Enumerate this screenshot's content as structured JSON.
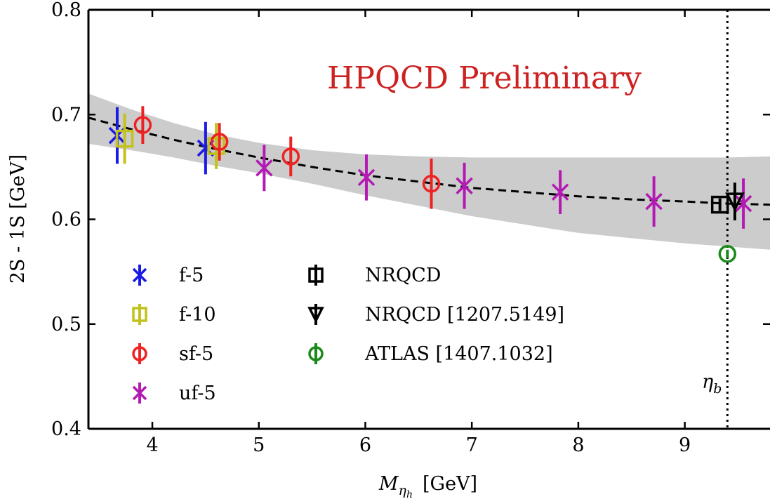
{
  "chart_data": {
    "type": "scatter",
    "title": "",
    "xlabel_main": "M",
    "xlabel_sub": "η",
    "xlabel_subsub": "h",
    "xlabel_unit": "[GeV]",
    "ylabel": "2S - 1S [GeV]",
    "xlim": [
      3.4,
      9.8
    ],
    "ylim": [
      0.4,
      0.8
    ],
    "xticks": [
      4,
      5,
      6,
      7,
      8,
      9
    ],
    "yticks": [
      0.4,
      0.5,
      0.6,
      0.7,
      0.8
    ],
    "xtick_labels": [
      "4",
      "5",
      "6",
      "7",
      "8",
      "9"
    ],
    "ytick_labels": [
      "0.4",
      "0.5",
      "0.6",
      "0.7",
      "0.8"
    ],
    "annotation": {
      "text": "HPQCD Preliminary",
      "color": "#cc2222"
    },
    "vertical_line": {
      "x": 9.4,
      "label": "η",
      "label_sub": "b"
    },
    "fit": {
      "x": [
        3.4,
        3.8,
        4.2,
        4.6,
        5.0,
        5.5,
        6.0,
        6.5,
        7.0,
        7.5,
        8.0,
        8.5,
        9.0,
        9.4,
        9.8
      ],
      "central": [
        0.697,
        0.686,
        0.676,
        0.667,
        0.659,
        0.65,
        0.642,
        0.636,
        0.63,
        0.626,
        0.622,
        0.619,
        0.617,
        0.615,
        0.614
      ],
      "upper": [
        0.72,
        0.705,
        0.692,
        0.681,
        0.673,
        0.666,
        0.662,
        0.66,
        0.659,
        0.659,
        0.659,
        0.659,
        0.659,
        0.659,
        0.66
      ],
      "lower": [
        0.672,
        0.666,
        0.659,
        0.651,
        0.644,
        0.634,
        0.623,
        0.613,
        0.603,
        0.595,
        0.587,
        0.582,
        0.577,
        0.574,
        0.571
      ],
      "band_color": "#cccccc"
    },
    "series": [
      {
        "name": "f-5",
        "marker": "asterisk",
        "color": "#1a1ae6",
        "points": [
          {
            "x": 3.67,
            "y": 0.68,
            "err": 0.027
          },
          {
            "x": 4.5,
            "y": 0.668,
            "err": 0.025
          }
        ]
      },
      {
        "name": "f-10",
        "marker": "square",
        "color": "#c2c21a",
        "points": [
          {
            "x": 3.74,
            "y": 0.677,
            "err": 0.024
          },
          {
            "x": 4.6,
            "y": 0.67,
            "err": 0.022
          }
        ]
      },
      {
        "name": "sf-5",
        "marker": "circle",
        "color": "#ee2222",
        "points": [
          {
            "x": 3.91,
            "y": 0.69,
            "err": 0.018
          },
          {
            "x": 4.63,
            "y": 0.674,
            "err": 0.018
          },
          {
            "x": 5.3,
            "y": 0.66,
            "err": 0.019
          },
          {
            "x": 6.62,
            "y": 0.634,
            "err": 0.024
          }
        ]
      },
      {
        "name": "uf-5",
        "marker": "asterisk",
        "color": "#b31ab3",
        "points": [
          {
            "x": 5.05,
            "y": 0.649,
            "err": 0.022
          },
          {
            "x": 6.01,
            "y": 0.64,
            "err": 0.022
          },
          {
            "x": 6.93,
            "y": 0.632,
            "err": 0.022
          },
          {
            "x": 7.83,
            "y": 0.626,
            "err": 0.021
          },
          {
            "x": 8.71,
            "y": 0.617,
            "err": 0.024
          },
          {
            "x": 9.55,
            "y": 0.615,
            "err": 0.024
          }
        ]
      },
      {
        "name": "NRQCD",
        "marker": "square",
        "color": "#000000",
        "points": [
          {
            "x": 9.33,
            "y": 0.614,
            "err": 0.006
          }
        ]
      },
      {
        "name": "NRQCD [1207.5149]",
        "marker": "triangle-down",
        "color": "#000000",
        "points": [
          {
            "x": 9.47,
            "y": 0.617,
            "err": 0.018
          }
        ]
      },
      {
        "name": "ATLAS [1407.1032]",
        "marker": "circle",
        "color": "#1a8a1a",
        "points": [
          {
            "x": 9.4,
            "y": 0.567,
            "err": 0.004
          }
        ]
      }
    ],
    "legend": {
      "left_column": [
        "f-5",
        "f-10",
        "sf-5",
        "uf-5"
      ],
      "right_column": [
        "NRQCD",
        "NRQCD [1207.5149]",
        "ATLAS [1407.1032]"
      ]
    }
  }
}
